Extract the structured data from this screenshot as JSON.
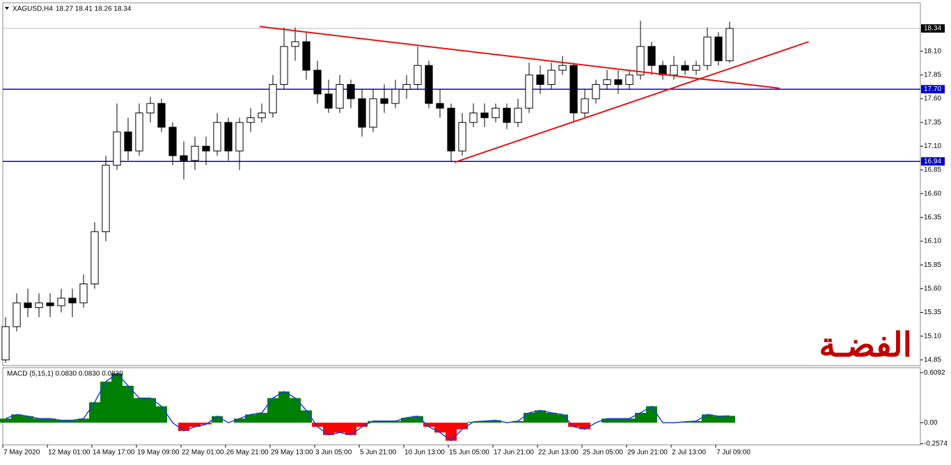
{
  "header": {
    "symbol": "XAGUSD,H4",
    "quote": "18.27 18.41 18.26 18.34",
    "indicator": "MACD (5,15,1) 0.0830 0.0830 0.0830"
  },
  "chart_data": [
    {
      "type": "candlestick",
      "annotation": "الفضـة",
      "annotation_color": "#c00000",
      "xlim": [
        -0.25,
        82.125
      ],
      "ylim": [
        14.79,
        18.61
      ],
      "yticks": [
        14.85,
        {
          "value": 15.1,
          "label": "15.10"
        },
        15.35,
        {
          "value": 15.6,
          "label": "15.60"
        },
        15.85,
        {
          "value": 16.1,
          "label": "16.10"
        },
        16.35,
        {
          "value": 16.6,
          "label": "16.60"
        },
        16.85,
        {
          "value": 17.1,
          "label": "17.10"
        },
        17.35,
        {
          "value": 17.6,
          "label": "17.60"
        },
        17.85,
        {
          "value": 18.1,
          "label": "18.10"
        }
      ],
      "last_price": {
        "value": 18.34,
        "label": "18.34"
      },
      "hlines": [
        {
          "value": 17.7,
          "label": "17.70",
          "color": "#0000c8"
        },
        {
          "value": 16.94,
          "label": "16.94",
          "color": "#0000c8"
        }
      ],
      "trendlines": [
        {
          "color": "#e81010",
          "from": [
            22.8,
            18.36
          ],
          "to": [
            69.5,
            17.71
          ]
        },
        {
          "color": "#e81010",
          "from": [
            40.3,
            16.93
          ],
          "to": [
            72.1,
            18.2
          ]
        }
      ],
      "ohlc": [
        [
          14.85,
          15.3,
          14.82,
          15.2
        ],
        [
          15.2,
          15.55,
          15.15,
          15.45
        ],
        [
          15.45,
          15.6,
          15.3,
          15.4
        ],
        [
          15.4,
          15.55,
          15.3,
          15.45
        ],
        [
          15.45,
          15.55,
          15.3,
          15.42
        ],
        [
          15.42,
          15.6,
          15.35,
          15.5
        ],
        [
          15.5,
          15.6,
          15.3,
          15.45
        ],
        [
          15.45,
          15.75,
          15.4,
          15.65
        ],
        [
          15.65,
          16.3,
          15.6,
          16.2
        ],
        [
          16.2,
          17.0,
          16.1,
          16.9
        ],
        [
          16.9,
          17.55,
          16.85,
          17.25
        ],
        [
          17.25,
          17.4,
          16.95,
          17.05
        ],
        [
          17.05,
          17.55,
          17.0,
          17.45
        ],
        [
          17.45,
          17.62,
          17.35,
          17.55
        ],
        [
          17.55,
          17.6,
          17.25,
          17.3
        ],
        [
          17.3,
          17.35,
          16.9,
          17.0
        ],
        [
          17.0,
          17.15,
          16.75,
          16.95
        ],
        [
          16.95,
          17.2,
          16.85,
          17.1
        ],
        [
          17.1,
          17.2,
          16.9,
          17.05
        ],
        [
          17.05,
          17.45,
          17.0,
          17.35
        ],
        [
          17.35,
          17.4,
          16.95,
          17.05
        ],
        [
          17.05,
          17.4,
          16.85,
          17.35
        ],
        [
          17.35,
          17.5,
          17.25,
          17.4
        ],
        [
          17.4,
          17.55,
          17.35,
          17.45
        ],
        [
          17.45,
          17.85,
          17.4,
          17.75
        ],
        [
          17.75,
          18.35,
          17.7,
          18.15
        ],
        [
          18.15,
          18.35,
          18.0,
          18.2
        ],
        [
          18.2,
          18.3,
          17.8,
          17.9
        ],
        [
          17.9,
          18.0,
          17.55,
          17.65
        ],
        [
          17.65,
          17.8,
          17.45,
          17.5
        ],
        [
          17.5,
          17.85,
          17.45,
          17.75
        ],
        [
          17.75,
          17.8,
          17.5,
          17.6
        ],
        [
          17.6,
          17.7,
          17.2,
          17.3
        ],
        [
          17.3,
          17.7,
          17.25,
          17.6
        ],
        [
          17.6,
          17.75,
          17.45,
          17.55
        ],
        [
          17.55,
          17.8,
          17.5,
          17.7
        ],
        [
          17.7,
          17.85,
          17.6,
          17.75
        ],
        [
          17.75,
          18.15,
          17.7,
          17.95
        ],
        [
          17.95,
          18.0,
          17.5,
          17.55
        ],
        [
          17.55,
          17.7,
          17.4,
          17.5
        ],
        [
          17.5,
          17.55,
          16.94,
          17.05
        ],
        [
          17.05,
          17.45,
          17.0,
          17.35
        ],
        [
          17.35,
          17.55,
          17.3,
          17.45
        ],
        [
          17.45,
          17.55,
          17.3,
          17.4
        ],
        [
          17.4,
          17.55,
          17.35,
          17.5
        ],
        [
          17.5,
          17.55,
          17.28,
          17.35
        ],
        [
          17.35,
          17.6,
          17.3,
          17.5
        ],
        [
          17.5,
          17.98,
          17.45,
          17.85
        ],
        [
          17.85,
          17.95,
          17.65,
          17.75
        ],
        [
          17.75,
          17.98,
          17.7,
          17.9
        ],
        [
          17.9,
          18.05,
          17.85,
          17.95
        ],
        [
          17.95,
          17.98,
          17.35,
          17.45
        ],
        [
          17.45,
          17.7,
          17.4,
          17.6
        ],
        [
          17.6,
          17.8,
          17.55,
          17.75
        ],
        [
          17.75,
          17.9,
          17.7,
          17.8
        ],
        [
          17.8,
          17.9,
          17.65,
          17.75
        ],
        [
          17.75,
          17.9,
          17.7,
          17.85
        ],
        [
          17.85,
          18.42,
          17.8,
          18.15
        ],
        [
          18.15,
          18.2,
          17.85,
          17.95
        ],
        [
          17.95,
          18.0,
          17.8,
          17.85
        ],
        [
          17.85,
          18.05,
          17.8,
          17.95
        ],
        [
          17.95,
          18.0,
          17.85,
          17.9
        ],
        [
          17.9,
          18.0,
          17.85,
          17.95
        ],
        [
          17.95,
          18.35,
          17.9,
          18.25
        ],
        [
          18.25,
          18.3,
          17.95,
          18.0
        ],
        [
          18.0,
          18.41,
          17.98,
          18.34
        ]
      ]
    },
    {
      "type": "macd-histogram",
      "up_color": "#008000",
      "down_color": "#ff0000",
      "line_color": "#1c3fd8",
      "ylim": [
        -0.27,
        0.67
      ],
      "yticks": [
        0.6092,
        {
          "value": 0,
          "label": "0.00"
        },
        -0.2574
      ],
      "x_labels": [
        "7 May 2020",
        "12 May 01:00",
        "14 May 17:00",
        "19 May 09:00",
        "22 May 01:00",
        "26 May 21:00",
        "29 May 13:00",
        "3 Jun 05:00",
        "5 Jun 21:00",
        "10 Jun 13:00",
        "15 Jun 05:00",
        "17 Jun 21:00",
        "22 Jun 13:00",
        "25 Jun 05:00",
        "29 Jun 21:00",
        "2 Jul 13:00",
        "7 Jul 09:00"
      ],
      "values": [
        0.05,
        0.1,
        0.08,
        0.05,
        0.05,
        0.03,
        0.03,
        0.05,
        0.25,
        0.5,
        0.6,
        0.45,
        0.3,
        0.3,
        0.2,
        0.0,
        -0.1,
        -0.05,
        -0.02,
        0.08,
        0.0,
        0.05,
        0.1,
        0.12,
        0.3,
        0.38,
        0.3,
        0.15,
        -0.05,
        -0.15,
        -0.12,
        -0.15,
        -0.05,
        0.02,
        0.02,
        0.02,
        0.06,
        0.08,
        -0.05,
        -0.12,
        -0.22,
        -0.08,
        0.01,
        0.02,
        0.03,
        0.0,
        0.02,
        0.12,
        0.15,
        0.12,
        0.1,
        -0.05,
        -0.08,
        0.0,
        0.05,
        0.05,
        0.05,
        0.12,
        0.2,
        0.0,
        0.0,
        0.01,
        0.02,
        0.1,
        0.08,
        0.083
      ]
    }
  ]
}
